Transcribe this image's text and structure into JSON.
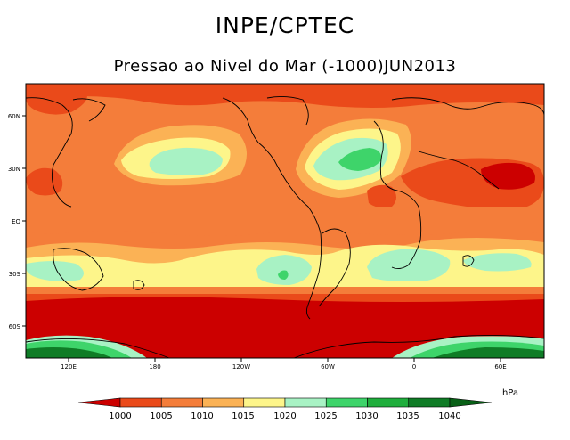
{
  "header": {
    "title": "INPE/CPTEC",
    "subtitle": "Pressao ao Nivel do Mar (-1000)JUN2013"
  },
  "map": {
    "x_ticks": [
      "120E",
      "180",
      "120W",
      "60W",
      "0",
      "60E"
    ],
    "y_ticks": [
      "60N",
      "30N",
      "EQ",
      "30S",
      "60S"
    ]
  },
  "legend": {
    "unit": "hPa",
    "levels": [
      "1000",
      "1005",
      "1010",
      "1015",
      "1020",
      "1025",
      "1030",
      "1035",
      "1040"
    ],
    "colors": [
      "#cc0000",
      "#ea4a1a",
      "#f47d3a",
      "#fbb255",
      "#fdf58a",
      "#a8f2c4",
      "#3ed46a",
      "#1fae3c",
      "#0f7c26",
      "#086016"
    ]
  },
  "chart_data": {
    "type": "heatmap",
    "title": "Pressao ao Nivel do Mar (-1000)JUN2013",
    "variable": "sea level pressure minus 1000",
    "unit": "hPa",
    "x_axis": [
      "120E",
      "180",
      "120W",
      "60W",
      "0",
      "60E"
    ],
    "y_axis": [
      "60N",
      "30N",
      "EQ",
      "30S",
      "60S"
    ],
    "contour_levels": [
      1000,
      1005,
      1010,
      1015,
      1020,
      1025,
      1030,
      1035,
      1040
    ]
  }
}
